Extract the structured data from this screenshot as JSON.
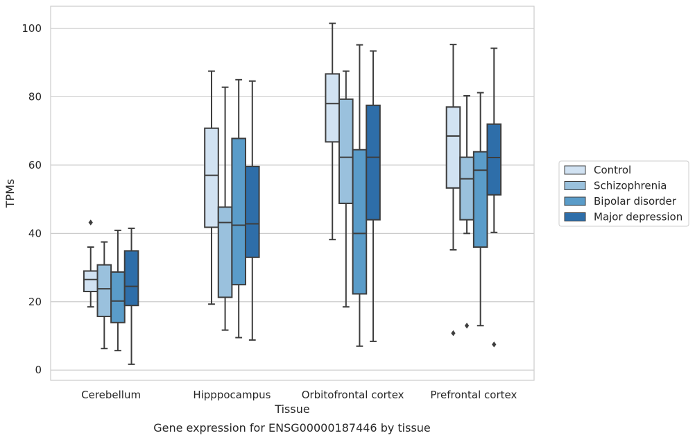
{
  "chart_data": {
    "type": "box",
    "xlabel": "Tissue",
    "ylabel": "TPMs",
    "caption": "Gene expression for ENSG00000187446 by tissue",
    "ylim": [
      -3,
      106.5
    ],
    "yticks": [
      0,
      20,
      40,
      60,
      80,
      100
    ],
    "grid": "horizontal",
    "legend_position": "right",
    "categories": [
      "Cerebellum",
      "Hipppocampus",
      "Orbitofrontal cortex",
      "Prefrontal cortex"
    ],
    "series": [
      {
        "name": "Control",
        "color": "#d1e2f2",
        "boxes": [
          {
            "whislo": 18.5,
            "q1": 23,
            "med": 26.5,
            "q3": 29,
            "whishi": 36,
            "fliers": [
              43.2
            ]
          },
          {
            "whislo": 19.3,
            "q1": 41.8,
            "med": 57,
            "q3": 70.8,
            "whishi": 87.5,
            "fliers": []
          },
          {
            "whislo": 38.2,
            "q1": 66.8,
            "med": 78,
            "q3": 86.7,
            "whishi": 101.5,
            "fliers": []
          },
          {
            "whislo": 35.2,
            "q1": 53.3,
            "med": 68.5,
            "q3": 77,
            "whishi": 95.3,
            "fliers": [
              10.8
            ]
          }
        ]
      },
      {
        "name": "Schizophrenia",
        "color": "#9ac1dd",
        "boxes": [
          {
            "whislo": 6.3,
            "q1": 15.7,
            "med": 23.8,
            "q3": 30.8,
            "whishi": 37.5,
            "fliers": []
          },
          {
            "whislo": 11.7,
            "q1": 21.3,
            "med": 43.2,
            "q3": 47.7,
            "whishi": 82.8,
            "fliers": []
          },
          {
            "whislo": 18.5,
            "q1": 48.8,
            "med": 62.3,
            "q3": 79.3,
            "whishi": 87.5,
            "fliers": []
          },
          {
            "whislo": 40,
            "q1": 44,
            "med": 56,
            "q3": 62.3,
            "whishi": 80.3,
            "fliers": [
              13
            ]
          }
        ]
      },
      {
        "name": "Bipolar disorder",
        "color": "#5a9cc9",
        "boxes": [
          {
            "whislo": 5.7,
            "q1": 13.9,
            "med": 20.2,
            "q3": 28.7,
            "whishi": 40.9,
            "fliers": []
          },
          {
            "whislo": 9.5,
            "q1": 25,
            "med": 42.4,
            "q3": 67.8,
            "whishi": 85,
            "fliers": []
          },
          {
            "whislo": 7,
            "q1": 22.3,
            "med": 40,
            "q3": 64.5,
            "whishi": 95.2,
            "fliers": []
          },
          {
            "whislo": 13,
            "q1": 36,
            "med": 58.5,
            "q3": 63.9,
            "whishi": 81.2,
            "fliers": []
          }
        ]
      },
      {
        "name": "Major depression",
        "color": "#2e6ea9",
        "boxes": [
          {
            "whislo": 1.7,
            "q1": 18.9,
            "med": 24.5,
            "q3": 34.9,
            "whishi": 41.5,
            "fliers": []
          },
          {
            "whislo": 8.8,
            "q1": 33,
            "med": 42.8,
            "q3": 59.6,
            "whishi": 84.6,
            "fliers": []
          },
          {
            "whislo": 8.4,
            "q1": 44,
            "med": 62.3,
            "q3": 77.5,
            "whishi": 93.4,
            "fliers": []
          },
          {
            "whislo": 40.3,
            "q1": 51.3,
            "med": 62.2,
            "q3": 72,
            "whishi": 94.2,
            "fliers": [
              7.5
            ]
          }
        ]
      }
    ]
  }
}
